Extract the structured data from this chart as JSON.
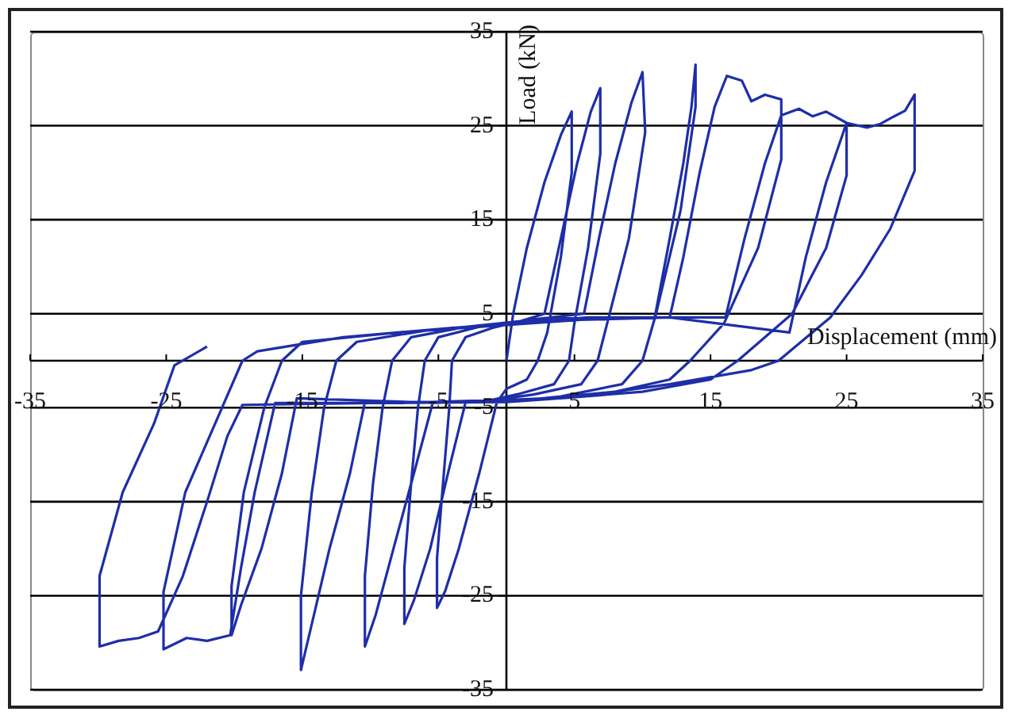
{
  "chart_data": {
    "type": "line",
    "xlabel": "Displacement (mm)",
    "ylabel": "Load (kN)",
    "color": "#1e2ea8",
    "line_style": "solid",
    "grid": "y",
    "xlim": [
      -35,
      35
    ],
    "ylim": [
      -35,
      35
    ],
    "xticks": [
      -35,
      -25,
      -15,
      -5,
      5,
      15,
      25,
      35
    ],
    "yticks": [
      -35,
      -25,
      -15,
      -5,
      5,
      15,
      25,
      35
    ],
    "x": [
      0,
      0.5,
      1.5,
      2.8,
      4,
      4.8,
      4.8,
      4,
      3,
      2.3,
      1.5,
      0,
      -0.7,
      -2,
      -3.5,
      -4.5,
      -5.1,
      -5.1,
      -4.6,
      -4.2,
      -4,
      -3,
      -1,
      1,
      2.8,
      4,
      5.2,
      6.2,
      6.9,
      6.9,
      6,
      5,
      4.6,
      3.5,
      1,
      -1.5,
      -3,
      -4.3,
      -5.6,
      -6.8,
      -7.5,
      -7.5,
      -7,
      -6.5,
      -6,
      -5,
      -2,
      2,
      5.7,
      6.8,
      8,
      9.2,
      10,
      10.2,
      9,
      7.5,
      6.7,
      5.5,
      2,
      -2,
      -5.4,
      -6.8,
      -8.3,
      -9.6,
      -10.4,
      -10.4,
      -9.8,
      -9.1,
      -8.4,
      -7,
      -3,
      3,
      10.9,
      12,
      13,
      13.6,
      13.9,
      13.9,
      12.8,
      11,
      10,
      8.5,
      4,
      0,
      -10.4,
      -11.5,
      -13,
      -14.3,
      -15.1,
      -15.1,
      -14.3,
      -13.4,
      -12.5,
      -11,
      -6,
      0,
      6,
      12,
      13,
      14.2,
      15.3,
      16.2,
      17.3,
      18,
      19,
      20.2,
      20.2,
      18.5,
      16,
      13.5,
      12,
      8,
      3,
      -5,
      -15.4,
      -16.5,
      -18,
      -19.5,
      -20.2,
      -20.2,
      -19.3,
      -17.8,
      -16.5,
      -15,
      -8,
      0,
      8,
      16.1,
      17.5,
      19,
      20.2,
      21.5,
      22.5,
      23.5,
      25,
      25,
      23.5,
      21,
      17,
      15,
      10,
      4,
      -8,
      -17,
      -18.5,
      -19.5,
      -20.3,
      -22,
      -23.5,
      -25.2,
      -25.2,
      -23.6,
      -20.9,
      -19.4,
      -18.3,
      -12,
      -4,
      4,
      12,
      20.8,
      22,
      23.5,
      25,
      26.5,
      27.5,
      28.5,
      29.3,
      30,
      30,
      28.2,
      26.1,
      23.8,
      20,
      18,
      12,
      5,
      0,
      -10,
      -19.4,
      -20.5,
      -22,
      -23.8,
      -25.6,
      -27,
      -28.5,
      -29.9,
      -29.9,
      -28.2,
      -25.9,
      -24.4,
      -22
    ],
    "values": [
      0,
      5,
      12,
      19,
      24,
      26.5,
      20,
      11,
      3,
      0,
      -2,
      -3,
      -4.4,
      -12,
      -20,
      -24.5,
      -26.3,
      -21,
      -12,
      -5,
      0,
      2.5,
      3.5,
      4.2,
      5,
      13,
      21,
      26.5,
      29,
      22,
      12,
      4,
      0,
      -2.5,
      -3.5,
      -4.3,
      -4.4,
      -12,
      -20,
      -25.5,
      -28,
      -22,
      -13,
      -5,
      0,
      2.5,
      3.6,
      4.4,
      5,
      13,
      21,
      27.5,
      30.7,
      24.3,
      13,
      4.5,
      0,
      -2.5,
      -3.6,
      -4.4,
      -4.4,
      -12,
      -20,
      -27,
      -30.4,
      -22.9,
      -13,
      -5,
      0,
      2.5,
      3.6,
      4.5,
      4.6,
      13,
      21,
      27,
      31.5,
      27,
      16,
      5,
      0,
      -2.5,
      -3.8,
      -4.4,
      -4.4,
      -12,
      -20,
      -28,
      -32.9,
      -25,
      -14,
      -5,
      0,
      2,
      3.2,
      3.9,
      4.6,
      4.6,
      11,
      20,
      27,
      30.3,
      29.8,
      27.6,
      28.3,
      27.8,
      21.4,
      12,
      4,
      0,
      -2,
      -3.3,
      -4,
      -4.5,
      -4,
      -12,
      -20,
      -26,
      -29.2,
      -24,
      -14,
      -5,
      0,
      2,
      3,
      3.8,
      4.6,
      4.6,
      13,
      21,
      26.1,
      26.8,
      26,
      26.5,
      25.3,
      19.7,
      12,
      5,
      0,
      -2,
      -3.3,
      -4,
      -4.5,
      -4.5,
      -14,
      -22,
      -29.2,
      -29.8,
      -29.5,
      -30.7,
      -24.6,
      -14,
      -5,
      0,
      1,
      2.5,
      3.5,
      4.3,
      4.6,
      3,
      11,
      19,
      25.3,
      24.8,
      25.2,
      26,
      26.6,
      28.3,
      20.2,
      14,
      9.1,
      4.6,
      0,
      -1,
      -2.5,
      -3.9,
      -4.4,
      -4.5,
      -4.7,
      -8,
      -15,
      -23,
      -28.8,
      -29.5,
      -29.8,
      -30.4,
      -22.9,
      -14,
      -6.7,
      -0.5,
      1.5
    ]
  }
}
